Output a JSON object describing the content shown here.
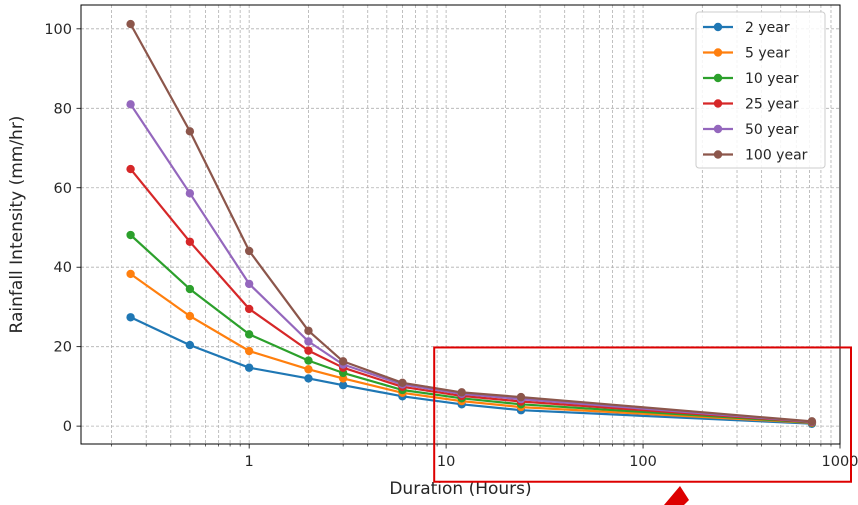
{
  "chart_data": {
    "type": "line",
    "x_scale": "log",
    "xlabel": "Duration (Hours)",
    "ylabel": "Rainfall Intensity (mm/hr)",
    "xlim": [
      0.14,
      1000
    ],
    "ylim": [
      -4.5,
      106
    ],
    "x_ticks": [
      {
        "value": 1,
        "label": "1"
      },
      {
        "value": 10,
        "label": "10"
      },
      {
        "value": 100,
        "label": "100"
      },
      {
        "value": 1000,
        "label": "1000"
      }
    ],
    "y_ticks": [
      {
        "value": 0,
        "label": "0"
      },
      {
        "value": 20,
        "label": "20"
      },
      {
        "value": 40,
        "label": "40"
      },
      {
        "value": 60,
        "label": "60"
      },
      {
        "value": 80,
        "label": "80"
      },
      {
        "value": 100,
        "label": "100"
      }
    ],
    "grid": "major and minor, dashed",
    "legend_position": "top-right",
    "x": [
      0.25,
      0.5,
      1,
      2,
      3,
      6,
      12,
      24,
      720
    ],
    "series": [
      {
        "name": "2 year",
        "color": "#1f77b4",
        "values": [
          27.4,
          20.4,
          14.7,
          12.0,
          10.3,
          7.5,
          5.5,
          4.0,
          0.6
        ]
      },
      {
        "name": "5 year",
        "color": "#ff7f0e",
        "values": [
          38.3,
          27.7,
          18.9,
          14.3,
          12.0,
          8.4,
          6.3,
          4.8,
          0.8
        ]
      },
      {
        "name": "10 year",
        "color": "#2ca02c",
        "values": [
          48.1,
          34.5,
          23.1,
          16.5,
          13.4,
          9.1,
          7.0,
          5.5,
          0.9
        ]
      },
      {
        "name": "25 year",
        "color": "#d62728",
        "values": [
          64.7,
          46.4,
          29.5,
          19.0,
          14.7,
          9.9,
          7.6,
          6.2,
          1.0
        ]
      },
      {
        "name": "50 year",
        "color": "#9467bd",
        "values": [
          81.0,
          58.6,
          35.8,
          21.3,
          15.5,
          10.5,
          8.1,
          6.8,
          1.1
        ]
      },
      {
        "name": "100 year",
        "color": "#8c564b",
        "values": [
          101.2,
          74.2,
          44.1,
          24.0,
          16.3,
          10.9,
          8.5,
          7.3,
          1.2
        ]
      }
    ],
    "annotation": {
      "type": "highlight-box",
      "color": "#dd0000",
      "x_range": [
        8.7,
        1000
      ],
      "y_range": [
        -14,
        19.8
      ]
    },
    "arrow_color": "#dd0000"
  }
}
